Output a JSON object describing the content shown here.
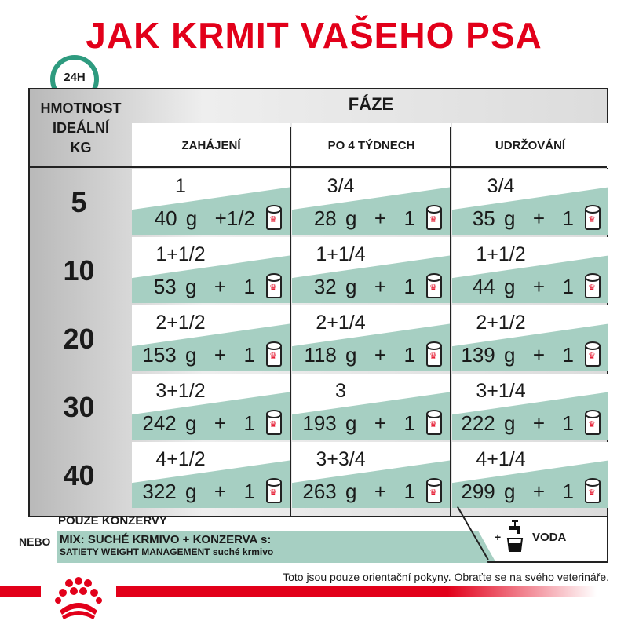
{
  "title": "JAK KRMIT VAŠEHO PSA",
  "clock_label": "24H",
  "table": {
    "weight_header": [
      "HMOTNOST",
      "IDEÁLNÍ",
      "KG"
    ],
    "phase_header": "FÁZE",
    "columns": [
      "ZAHÁJENÍ",
      "PO 4 TÝDNECH",
      "UDRŽOVÁNÍ"
    ],
    "rows": [
      {
        "weight": "5",
        "cells": [
          {
            "dry": "1",
            "wet": "40 g  +1/2"
          },
          {
            "dry": "3/4",
            "wet": "28 g  +  1"
          },
          {
            "dry": "3/4",
            "wet": "35 g  +  1"
          }
        ]
      },
      {
        "weight": "10",
        "cells": [
          {
            "dry": "1+1/2",
            "wet": "53 g  +  1"
          },
          {
            "dry": "1+1/4",
            "wet": "32 g  +  1"
          },
          {
            "dry": "1+1/2",
            "wet": "44 g  +  1"
          }
        ]
      },
      {
        "weight": "20",
        "cells": [
          {
            "dry": "2+1/2",
            "wet": "153 g  +  1"
          },
          {
            "dry": "2+1/4",
            "wet": "118 g  +  1"
          },
          {
            "dry": "2+1/2",
            "wet": "139 g  +  1"
          }
        ]
      },
      {
        "weight": "30",
        "cells": [
          {
            "dry": "3+1/2",
            "wet": "242 g  +  1"
          },
          {
            "dry": "3",
            "wet": "193 g  +  1"
          },
          {
            "dry": "3+1/4",
            "wet": "222 g  +  1"
          }
        ]
      },
      {
        "weight": "40",
        "cells": [
          {
            "dry": "4+1/2",
            "wet": "322 g  +  1"
          },
          {
            "dry": "3+3/4",
            "wet": "263 g  +  1"
          },
          {
            "dry": "4+1/4",
            "wet": "299 g  +  1"
          }
        ]
      }
    ]
  },
  "footer": {
    "only_cans": "POUZE KONZERVY",
    "or": "NEBO",
    "mix_line1": "MIX: SUCHÉ KRMIVO + KONZERVA s:",
    "mix_line2": "SATIETY WEIGHT MANAGEMENT suché krmivo",
    "water_plus": "+",
    "water": "VODA",
    "disclaimer": "Toto jsou pouze orientační pokyny. Obraťte se na svého veterináře."
  },
  "colors": {
    "brand_red": "#e2001a",
    "accent_green": "#a6cfc2",
    "clock_green": "#2e9b7f"
  }
}
